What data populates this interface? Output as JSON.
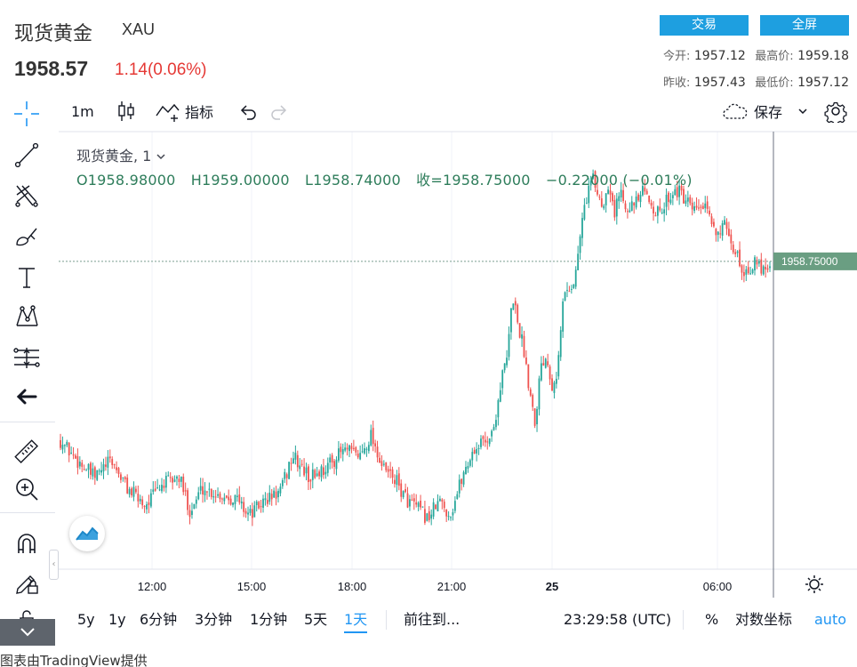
{
  "header": {
    "name": "现货黄金",
    "symbol": "XAU",
    "price": "1958.57",
    "change": "1.14(0.06%)",
    "trade_label": "交易",
    "fullscreen_label": "全屏",
    "open_label": "今开:",
    "open": "1957.12",
    "high_label": "最高价:",
    "high": "1959.18",
    "prev_close_label": "昨收:",
    "prev_close": "1957.43",
    "low_label": "最低价:",
    "low": "1957.12"
  },
  "toolbar": {
    "interval": "1m",
    "indicators_label": "指标",
    "save_label": "保存"
  },
  "legend": {
    "title": "现货黄金, 1",
    "open": "O1958.98000",
    "high": "H1959.00000",
    "low": "L1958.74000",
    "close": "收=1958.75000",
    "change": "−0.22000 (−0.01%)"
  },
  "ranges": [
    "5y",
    "1y",
    "6分钟",
    "3分钟",
    "1分钟",
    "5天",
    "1天"
  ],
  "active_range": "1天",
  "goto_label": "前往到...",
  "clock": "23:29:58 (UTC)",
  "percent_label": "%",
  "log_label": "对数坐标",
  "auto_label": "auto",
  "credit": "图表由TradingView提供",
  "colors": {
    "up": "#26a69a",
    "down": "#ef5350",
    "price_line": "#7a9e90",
    "price_label_bg": "#6a9e82",
    "accent": "#2196f3",
    "btn": "#1e9fe0"
  },
  "chart_data": {
    "type": "candlestick",
    "interval": "1m",
    "last_price": "1958.75000",
    "x_tick_labels": [
      "12:00",
      "15:00",
      "18:00",
      "21:00",
      "25",
      "06:00"
    ],
    "path": [
      [
        0,
        1948.2
      ],
      [
        5,
        1947.2
      ],
      [
        12,
        1946.0
      ],
      [
        18,
        1947.0
      ],
      [
        24,
        1945.3
      ],
      [
        30,
        1944.4
      ],
      [
        36,
        1945.6
      ],
      [
        42,
        1946.0
      ],
      [
        46,
        1944.0
      ],
      [
        50,
        1945.4
      ],
      [
        56,
        1945.0
      ],
      [
        62,
        1944.8
      ],
      [
        67,
        1943.8
      ],
      [
        72,
        1944.6
      ],
      [
        78,
        1945.2
      ],
      [
        82,
        1947.3
      ],
      [
        88,
        1946.0
      ],
      [
        94,
        1946.6
      ],
      [
        100,
        1947.6
      ],
      [
        106,
        1947.3
      ],
      [
        110,
        1948.6
      ],
      [
        114,
        1946.5
      ],
      [
        118,
        1946.0
      ],
      [
        122,
        1944.8
      ],
      [
        126,
        1944.2
      ],
      [
        130,
        1943.6
      ],
      [
        134,
        1944.6
      ],
      [
        138,
        1943.8
      ],
      [
        142,
        1946.0
      ],
      [
        146,
        1947.6
      ],
      [
        150,
        1948.2
      ],
      [
        153,
        1948.6
      ],
      [
        156,
        1951.8
      ],
      [
        158,
        1953.0
      ],
      [
        160,
        1956.8
      ],
      [
        162,
        1955.0
      ],
      [
        164,
        1953.5
      ],
      [
        166,
        1951.2
      ],
      [
        168,
        1949.3
      ],
      [
        170,
        1952.8
      ],
      [
        172,
        1953.2
      ],
      [
        174,
        1951.5
      ],
      [
        176,
        1952.5
      ],
      [
        178,
        1956.8
      ],
      [
        180,
        1957.2
      ],
      [
        182,
        1957.6
      ],
      [
        184,
        1960.5
      ],
      [
        186,
        1962.5
      ],
      [
        188,
        1963.7
      ],
      [
        190,
        1962.8
      ],
      [
        192,
        1962.0
      ],
      [
        194,
        1963.6
      ],
      [
        196,
        1961.5
      ],
      [
        198,
        1963.0
      ],
      [
        200,
        1962.2
      ],
      [
        203,
        1962.0
      ],
      [
        206,
        1962.8
      ],
      [
        209,
        1962.2
      ],
      [
        212,
        1961.4
      ],
      [
        215,
        1962.6
      ],
      [
        218,
        1963.0
      ],
      [
        221,
        1962.3
      ],
      [
        224,
        1961.6
      ],
      [
        227,
        1962.0
      ],
      [
        229,
        1961.5
      ],
      [
        231,
        1960.8
      ],
      [
        233,
        1960.6
      ],
      [
        235,
        1960.8
      ],
      [
        237,
        1959.5
      ],
      [
        239,
        1959.4
      ],
      [
        241,
        1958.3
      ],
      [
        243,
        1958.2
      ],
      [
        245,
        1958.6
      ],
      [
        247,
        1958.5
      ],
      [
        249,
        1958.4
      ],
      [
        251,
        1958.7
      ]
    ]
  }
}
